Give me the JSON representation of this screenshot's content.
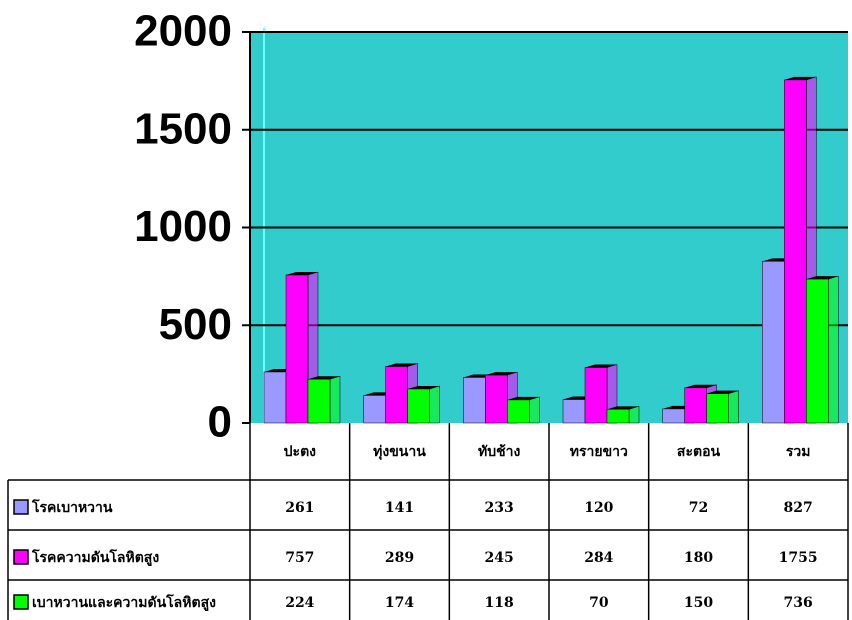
{
  "chart_data": {
    "type": "bar",
    "categories": [
      "ปะตง",
      "ทุ่งขนาน",
      "ทับช้าง",
      "ทรายขาว",
      "สะตอน",
      "รวม"
    ],
    "series": [
      {
        "name": "โรคเบาหวาน",
        "color": "#9999ff",
        "values": [
          261,
          141,
          233,
          120,
          72,
          827
        ]
      },
      {
        "name": "โรคความดันโลหิตสูง",
        "color": "#ff00ff",
        "values": [
          757,
          289,
          245,
          284,
          180,
          1755
        ]
      },
      {
        "name": "เบาหวานและความดันโลหิตสูง",
        "color": "#00ff00",
        "values": [
          224,
          174,
          118,
          70,
          150,
          736
        ]
      }
    ],
    "ylim": [
      0,
      2000
    ],
    "yticks": [
      0,
      500,
      1000,
      1500,
      2000
    ],
    "grid": true,
    "background": "#33cccc"
  }
}
